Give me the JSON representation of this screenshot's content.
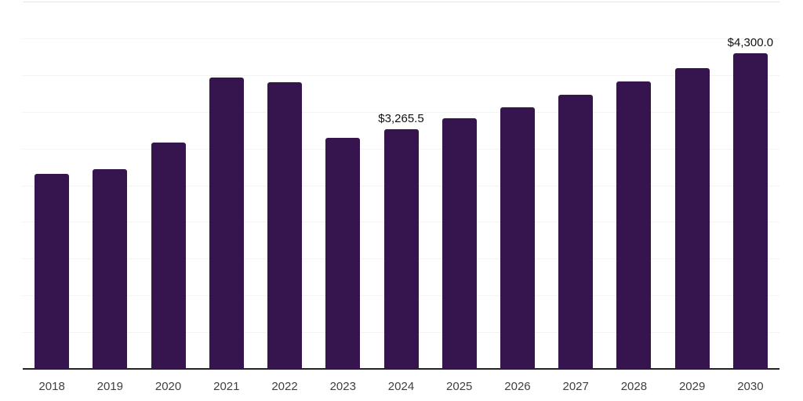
{
  "chart_data": {
    "type": "bar",
    "title": "",
    "xlabel": "",
    "ylabel": "",
    "categories": [
      "2018",
      "2019",
      "2020",
      "2021",
      "2022",
      "2023",
      "2024",
      "2025",
      "2026",
      "2027",
      "2028",
      "2029",
      "2030"
    ],
    "values": [
      2655,
      2720,
      3080,
      3970,
      3900,
      3140,
      3265.5,
      3410,
      3565,
      3735,
      3910,
      4090,
      4300
    ],
    "data_labels": [
      "",
      "",
      "",
      "",
      "",
      "",
      "$3,265.5",
      "",
      "",
      "",
      "",
      "",
      "$4,300.0"
    ],
    "ylim": [
      0,
      5000
    ],
    "gridline_step": 500,
    "grid": true,
    "legend": false,
    "y_tick_labels_visible": false
  },
  "colors": {
    "bar": "#36154E",
    "gridline": "#F3F3F3",
    "top_gridline": "#E4E4E4",
    "axis_line": "#222222",
    "tick_label": "#404040",
    "data_label": "#111111",
    "background": "#FFFFFF"
  }
}
